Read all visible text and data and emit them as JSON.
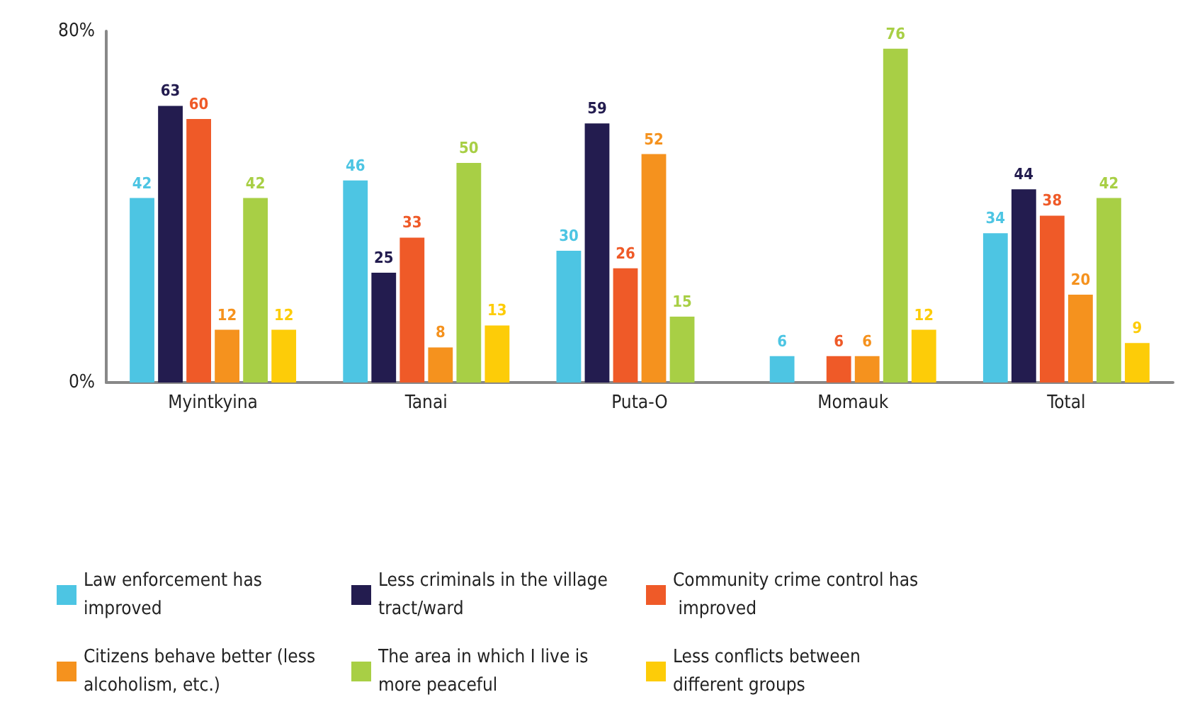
{
  "chart_data": {
    "type": "bar",
    "categories": [
      "Myintkyina",
      "Tanai",
      "Puta-O",
      "Momauk",
      "Total"
    ],
    "series": [
      {
        "name": "Law enforcement has improved",
        "color": "#4dc5e3",
        "values": [
          42,
          46,
          30,
          6,
          34
        ]
      },
      {
        "name": "Less criminals in the village tract/ward",
        "color": "#231c4f",
        "values": [
          63,
          25,
          59,
          null,
          44
        ]
      },
      {
        "name": "Community crime control has improved",
        "color": "#ef5a28",
        "values": [
          60,
          33,
          26,
          6,
          38
        ]
      },
      {
        "name": "Citizens behave better (less alcoholism, etc.)",
        "color": "#f5921e",
        "values": [
          12,
          8,
          52,
          6,
          20
        ]
      },
      {
        "name": "The area in which I live is more peaceful",
        "color": "#a8cf45",
        "values": [
          42,
          50,
          15,
          76,
          42
        ]
      },
      {
        "name": "Less conflicts between different groups",
        "color": "#fdcc08",
        "values": [
          12,
          13,
          null,
          12,
          9
        ]
      }
    ],
    "ylim": [
      0,
      80
    ],
    "yticks": [
      {
        "value": 0,
        "label": "0%"
      },
      {
        "value": 80,
        "label": "80%"
      }
    ],
    "grid": false,
    "legend": "bottom",
    "data_labels": true
  }
}
